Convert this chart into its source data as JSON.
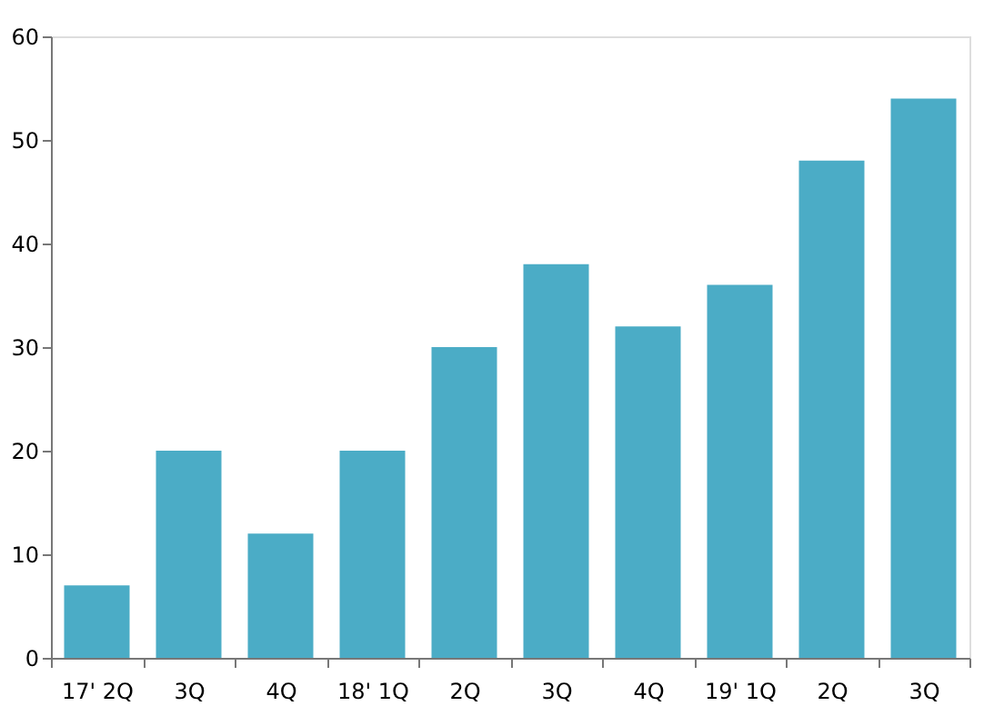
{
  "chart_data": {
    "type": "bar",
    "categories": [
      "17' 2Q",
      "3Q",
      "4Q",
      "18' 1Q",
      "2Q",
      "3Q",
      "4Q",
      "19' 1Q",
      "2Q",
      "3Q"
    ],
    "values": [
      7,
      20,
      12,
      20,
      30,
      38,
      32,
      36,
      48,
      54
    ],
    "color": "#4bacc6",
    "ylim": [
      0,
      60
    ],
    "yticks": [
      0,
      10,
      20,
      30,
      40,
      50,
      60
    ],
    "grid": false
  }
}
